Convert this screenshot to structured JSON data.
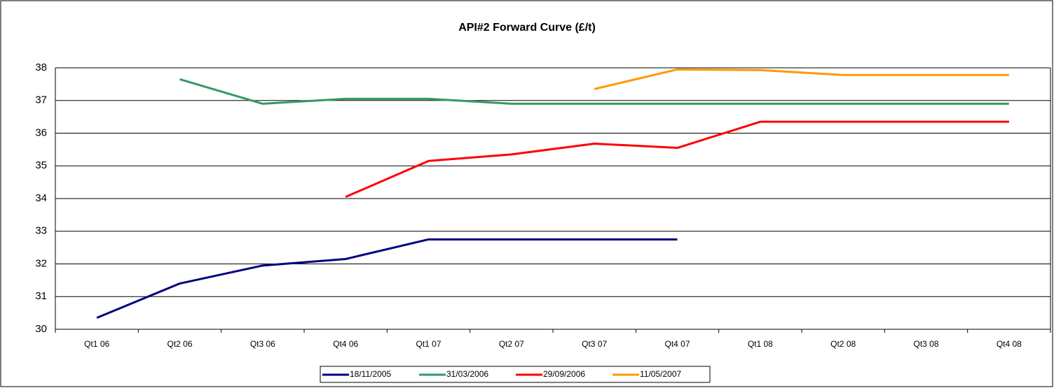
{
  "chart_data": {
    "type": "line",
    "title": "API#2 Forward Curve (£/t)",
    "categories": [
      "Qt1 06",
      "Qt2 06",
      "Qt3 06",
      "Qt4 06",
      "Qt1 07",
      "Qt2 07",
      "Qt3 07",
      "Qt4 07",
      "Qt1 08",
      "Qt2 08",
      "Qt3 08",
      "Qt4 08"
    ],
    "series": [
      {
        "name": "18/11/2005",
        "color": "#000080",
        "values": [
          30.35,
          31.4,
          31.95,
          32.15,
          32.75,
          32.75,
          32.75,
          32.75,
          null,
          null,
          null,
          null
        ]
      },
      {
        "name": "31/03/2006",
        "color": "#339966",
        "values": [
          null,
          37.65,
          36.9,
          37.05,
          37.05,
          36.9,
          36.9,
          36.9,
          36.9,
          36.9,
          36.9,
          36.9
        ]
      },
      {
        "name": "29/09/2006",
        "color": "#ff0000",
        "values": [
          null,
          null,
          null,
          34.05,
          35.15,
          35.35,
          35.68,
          35.55,
          36.35,
          36.35,
          36.35,
          36.35
        ]
      },
      {
        "name": "11/05/2007",
        "color": "#ff9900",
        "values": [
          null,
          null,
          null,
          null,
          null,
          null,
          37.35,
          37.95,
          37.93,
          37.78,
          37.78,
          37.78
        ]
      }
    ],
    "ylim": [
      30,
      38
    ],
    "yticks": [
      30,
      31,
      32,
      33,
      34,
      35,
      36,
      37,
      38
    ],
    "grid": true,
    "legend": "bottom"
  }
}
